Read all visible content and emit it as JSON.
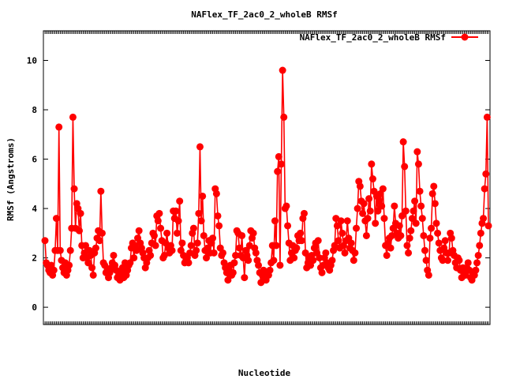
{
  "chart_data": {
    "type": "line",
    "title": "NAFlex_TF_2ac0_2_wholeB RMSf",
    "xlabel": "Nucleotide",
    "ylabel": "RMSf (Angstroms)",
    "ylim": [
      -0.7,
      11.2
    ],
    "yticks": [
      0,
      2,
      4,
      6,
      8,
      10
    ],
    "grid": false,
    "legend_position": "top-right",
    "series": [
      {
        "name": "NAFlex_TF_2ac0_2_wholeB RMSf",
        "color": "#ff0000",
        "marker": "filled-circle",
        "values": [
          2.7,
          1.8,
          1.7,
          1.5,
          1.4,
          1.7,
          1.3,
          1.5,
          2.3,
          3.6,
          2.3,
          7.3,
          2.3,
          1.9,
          1.6,
          1.4,
          1.8,
          1.3,
          1.5,
          1.7,
          2.3,
          3.2,
          7.7,
          4.8,
          3.2,
          4.2,
          4.0,
          3.1,
          3.8,
          2.5,
          2.0,
          2.2,
          2.5,
          2.0,
          1.8,
          2.3,
          2.1,
          1.6,
          1.3,
          2.2,
          2.4,
          2.8,
          3.1,
          2.7,
          4.7,
          3.0,
          1.8,
          1.7,
          1.4,
          1.5,
          1.2,
          1.4,
          1.6,
          1.8,
          2.1,
          1.7,
          1.5,
          1.2,
          1.3,
          1.1,
          1.4,
          1.6,
          1.2,
          1.8,
          1.3,
          1.5,
          1.7,
          1.8,
          2.4,
          2.6,
          2.0,
          2.5,
          2.3,
          2.8,
          3.1,
          2.6,
          2.4,
          2.2,
          2.0,
          1.6,
          1.8,
          2.0,
          2.3,
          2.1,
          2.6,
          3.0,
          2.9,
          2.5,
          3.7,
          3.5,
          3.8,
          3.2,
          2.7,
          2.0,
          2.1,
          2.6,
          3.0,
          2.4,
          2.2,
          2.5,
          2.3,
          3.9,
          3.6,
          3.9,
          3.0,
          3.5,
          4.3,
          2.3,
          2.6,
          2.1,
          1.8,
          1.9,
          2.0,
          1.8,
          2.2,
          2.5,
          3.0,
          3.2,
          2.1,
          2.3,
          2.6,
          3.8,
          6.5,
          3.5,
          4.5,
          2.9,
          2.3,
          2.0,
          2.4,
          2.7,
          2.2,
          2.6,
          2.8,
          2.2,
          4.8,
          4.6,
          3.7,
          3.3,
          2.4,
          2.1,
          2.2,
          1.8,
          1.6,
          1.4,
          1.1,
          1.5,
          1.7,
          1.3,
          1.4,
          1.8,
          2.1,
          3.1,
          3.0,
          2.4,
          2.1,
          2.9,
          2.0,
          1.2,
          2.3,
          2.1,
          1.9,
          2.5,
          3.1,
          2.8,
          3.0,
          2.4,
          2.2,
          1.9,
          1.7,
          1.4,
          1.0,
          1.3,
          1.5,
          1.2,
          1.1,
          1.4,
          1.3,
          1.5,
          1.8,
          2.5,
          1.9,
          3.5,
          2.5,
          5.5,
          6.1,
          1.7,
          5.8,
          9.6,
          7.7,
          4.0,
          4.1,
          3.3,
          2.6,
          1.9,
          2.2,
          2.5,
          2.0,
          2.3,
          2.4,
          2.9,
          2.7,
          3.0,
          2.7,
          3.6,
          3.8,
          2.2,
          1.6,
          1.8,
          2.0,
          1.7,
          2.1,
          1.9,
          2.4,
          2.6,
          2.2,
          2.7,
          2.0,
          1.6,
          1.4,
          1.7,
          2.0,
          2.2,
          1.8,
          1.6,
          1.5,
          1.7,
          1.9,
          2.3,
          2.5,
          3.6,
          3.3,
          2.7,
          2.4,
          3.5,
          3.0,
          2.5,
          2.2,
          2.7,
          3.5,
          2.8,
          2.4,
          2.6,
          2.3,
          1.9,
          2.2,
          3.2,
          4.0,
          5.1,
          4.9,
          4.3,
          3.8,
          4.2,
          3.5,
          2.9,
          3.6,
          4.4,
          3.9,
          5.8,
          5.2,
          4.7,
          3.4,
          4.5,
          3.9,
          4.3,
          4.6,
          4.1,
          4.8,
          3.6,
          2.5,
          2.1,
          2.6,
          2.8,
          2.4,
          2.9,
          3.2,
          4.1,
          3.4,
          3.0,
          2.8,
          3.3,
          2.9,
          3.7,
          6.7,
          5.7,
          3.9,
          2.5,
          2.2,
          2.8,
          3.1,
          3.6,
          3.9,
          4.3,
          3.4,
          6.3,
          5.8,
          4.7,
          4.1,
          3.6,
          2.9,
          2.3,
          1.9,
          1.5,
          1.3,
          2.8,
          3.2,
          4.6,
          4.9,
          4.2,
          3.4,
          3.0,
          2.6,
          2.3,
          2.0,
          1.9,
          2.4,
          2.7,
          2.2,
          1.9,
          2.2,
          3.0,
          2.8,
          2.3,
          2.1,
          1.8,
          1.6,
          2.0,
          1.9,
          1.5,
          1.2,
          1.6,
          1.4,
          1.3,
          1.6,
          1.8,
          1.5,
          1.2,
          1.1,
          1.4,
          1.3,
          1.5,
          1.8,
          2.1,
          2.5,
          3.0,
          3.4,
          3.6,
          4.8,
          5.4,
          7.7,
          3.3
        ]
      }
    ]
  }
}
